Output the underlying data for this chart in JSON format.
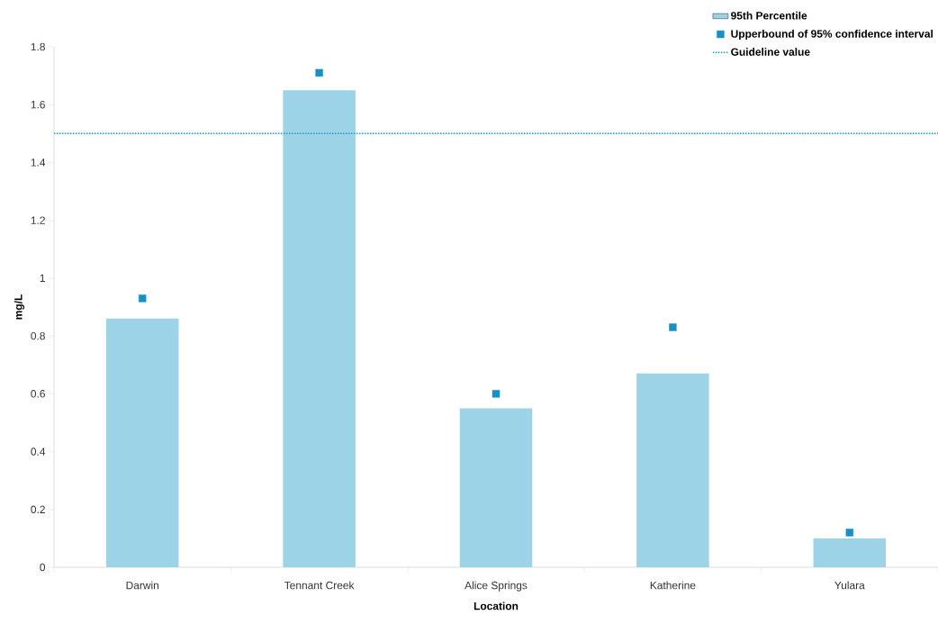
{
  "chart_data": {
    "type": "bar",
    "xlabel": "Location",
    "ylabel": "mg/L",
    "categories": [
      "Darwin",
      "Tennant Creek",
      "Alice Springs",
      "Katherine",
      "Yulara"
    ],
    "series": [
      {
        "name": "95th Percentile",
        "color": "#9dd3e6",
        "values": [
          0.86,
          1.65,
          0.55,
          0.67,
          0.1
        ]
      },
      {
        "name": "Upperbound of 95% confidence interval",
        "type": "scatter",
        "color": "#1a8fc6",
        "x": [
          "Darwin",
          "Tennant Creek",
          "Alice Springs",
          "Katherine",
          "Yulara"
        ],
        "values": [
          0.93,
          1.71,
          0.6,
          0.83,
          0.12
        ]
      }
    ],
    "ref_lines": [
      {
        "axis": "y",
        "value": 1.5,
        "label": "Guideline value",
        "color": "#1a9ad6",
        "line_style": "dotted"
      }
    ],
    "ylim": [
      0,
      1.8
    ],
    "yticks": [
      0,
      0.2,
      0.4,
      0.6,
      0.8,
      1,
      1.2,
      1.4,
      1.6,
      1.8
    ],
    "marker": "square",
    "legend": "top right"
  }
}
